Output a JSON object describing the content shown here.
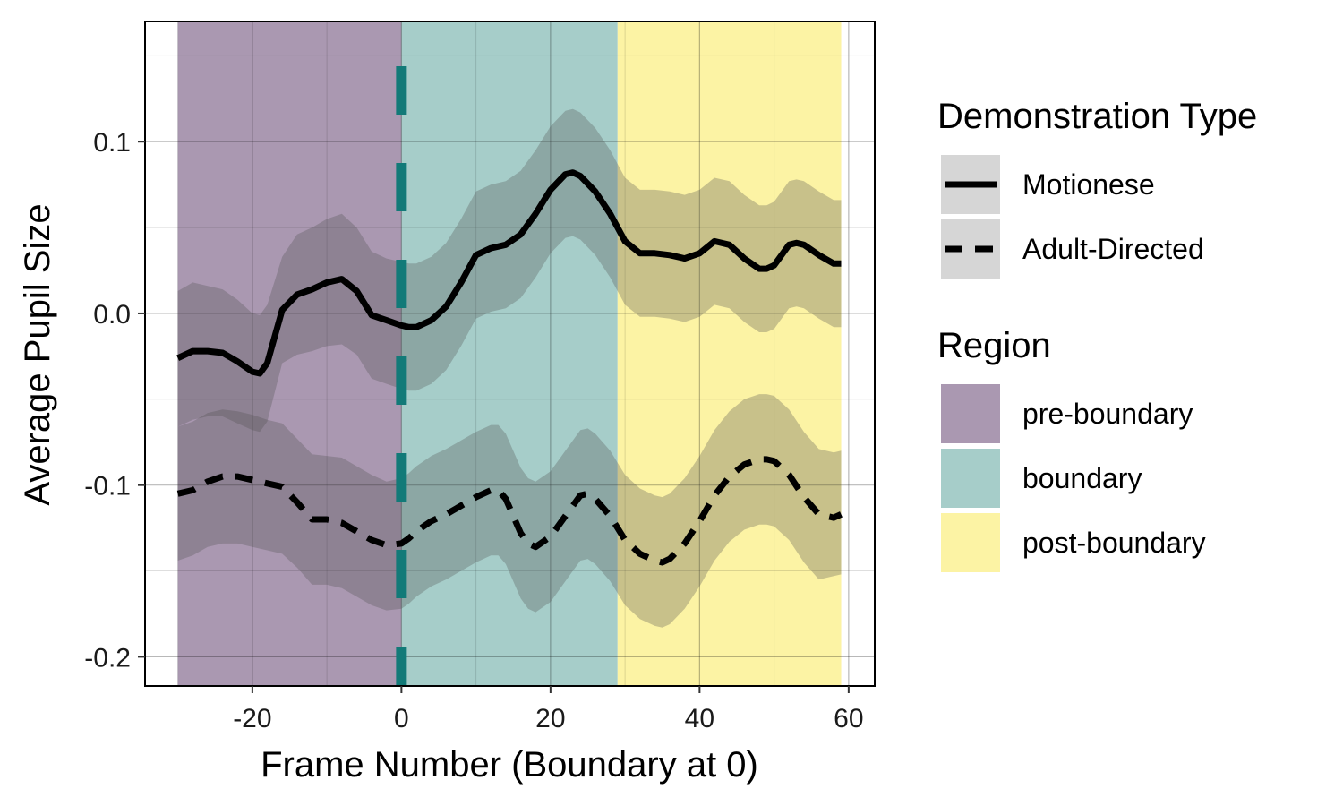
{
  "chart_data": {
    "type": "line",
    "xlabel": "Frame Number (Boundary at 0)",
    "ylabel": "Average Pupil Size",
    "xlim": [
      -34.4,
      63.5
    ],
    "ylim": [
      -0.217,
      0.17
    ],
    "x_ticks": [
      -20,
      0,
      20,
      40,
      60
    ],
    "x_tick_labels": [
      "-20",
      "0",
      "20",
      "40",
      "60"
    ],
    "y_ticks": [
      -0.2,
      -0.1,
      0.0,
      0.1
    ],
    "y_tick_labels": [
      "-0.2",
      "-0.1",
      "0.0",
      "0.1"
    ],
    "grid": true,
    "boundary_marker": {
      "x": 0,
      "style": "dashed",
      "color": "#127a78"
    },
    "regions": [
      {
        "name": "pre-boundary",
        "x_start": -30,
        "x_end": 0,
        "color": "#aa98b1"
      },
      {
        "name": "boundary",
        "x_start": 0,
        "x_end": 29,
        "color": "#a6cdc9"
      },
      {
        "name": "post-boundary",
        "x_start": 29,
        "x_end": 59,
        "color": "#fcf3a4"
      }
    ],
    "series": [
      {
        "name": "Motionese",
        "line_style": "solid",
        "color": "#000000",
        "x": [
          -30,
          -28,
          -26,
          -24,
          -22,
          -20,
          -19,
          -18,
          -16,
          -14,
          -12,
          -10,
          -8,
          -6,
          -4,
          -2,
          0,
          1,
          2,
          4,
          6,
          8,
          10,
          12,
          14,
          16,
          18,
          20,
          22,
          23,
          24,
          26,
          28,
          30,
          32,
          34,
          36,
          38,
          40,
          42,
          44,
          46,
          48,
          49,
          50,
          52,
          53,
          54,
          56,
          58,
          59
        ],
        "y": [
          -0.026,
          -0.022,
          -0.022,
          -0.023,
          -0.028,
          -0.034,
          -0.035,
          -0.029,
          0.002,
          0.011,
          0.014,
          0.018,
          0.02,
          0.013,
          -0.001,
          -0.004,
          -0.007,
          -0.008,
          -0.008,
          -0.004,
          0.004,
          0.018,
          0.034,
          0.038,
          0.04,
          0.046,
          0.058,
          0.072,
          0.081,
          0.082,
          0.08,
          0.071,
          0.058,
          0.042,
          0.035,
          0.035,
          0.034,
          0.032,
          0.035,
          0.042,
          0.04,
          0.032,
          0.026,
          0.026,
          0.028,
          0.04,
          0.041,
          0.04,
          0.034,
          0.029,
          0.029
        ],
        "band_upper": [
          0.013,
          0.018,
          0.016,
          0.014,
          0.008,
          0.0,
          -0.001,
          0.005,
          0.033,
          0.046,
          0.05,
          0.055,
          0.058,
          0.05,
          0.036,
          0.032,
          0.03,
          0.029,
          0.029,
          0.033,
          0.041,
          0.055,
          0.071,
          0.075,
          0.077,
          0.083,
          0.095,
          0.109,
          0.118,
          0.119,
          0.117,
          0.108,
          0.095,
          0.079,
          0.072,
          0.072,
          0.071,
          0.069,
          0.072,
          0.079,
          0.077,
          0.069,
          0.063,
          0.063,
          0.065,
          0.077,
          0.078,
          0.077,
          0.071,
          0.066,
          0.066
        ],
        "band_lower": [
          -0.066,
          -0.062,
          -0.06,
          -0.06,
          -0.064,
          -0.068,
          -0.069,
          -0.063,
          -0.029,
          -0.024,
          -0.022,
          -0.019,
          -0.018,
          -0.024,
          -0.038,
          -0.041,
          -0.044,
          -0.045,
          -0.045,
          -0.041,
          -0.033,
          -0.019,
          -0.003,
          0.001,
          0.003,
          0.009,
          0.021,
          0.035,
          0.044,
          0.045,
          0.043,
          0.034,
          0.021,
          0.005,
          -0.002,
          -0.002,
          -0.003,
          -0.005,
          -0.002,
          0.005,
          0.003,
          -0.005,
          -0.011,
          -0.011,
          -0.009,
          0.003,
          0.004,
          0.003,
          -0.003,
          -0.008,
          -0.008
        ]
      },
      {
        "name": "Adult-Directed",
        "line_style": "dashed",
        "color": "#000000",
        "x": [
          -30,
          -28,
          -26,
          -24,
          -22,
          -20,
          -18,
          -16,
          -14,
          -12,
          -10,
          -8,
          -6,
          -4,
          -2,
          0,
          1,
          2,
          4,
          6,
          8,
          10,
          12,
          13,
          14,
          16,
          17,
          18,
          20,
          22,
          24,
          25,
          26,
          28,
          30,
          32,
          34,
          35,
          36,
          38,
          40,
          42,
          44,
          46,
          48,
          49,
          50,
          52,
          54,
          56,
          58,
          59
        ],
        "y": [
          -0.105,
          -0.103,
          -0.098,
          -0.095,
          -0.095,
          -0.097,
          -0.099,
          -0.101,
          -0.11,
          -0.12,
          -0.12,
          -0.122,
          -0.127,
          -0.132,
          -0.135,
          -0.134,
          -0.131,
          -0.127,
          -0.121,
          -0.117,
          -0.112,
          -0.107,
          -0.103,
          -0.103,
          -0.108,
          -0.128,
          -0.134,
          -0.136,
          -0.13,
          -0.118,
          -0.106,
          -0.105,
          -0.108,
          -0.118,
          -0.132,
          -0.14,
          -0.144,
          -0.145,
          -0.143,
          -0.134,
          -0.121,
          -0.106,
          -0.095,
          -0.088,
          -0.085,
          -0.085,
          -0.086,
          -0.094,
          -0.107,
          -0.117,
          -0.119,
          -0.117
        ],
        "band_upper": [
          -0.066,
          -0.063,
          -0.058,
          -0.056,
          -0.057,
          -0.059,
          -0.062,
          -0.064,
          -0.073,
          -0.082,
          -0.083,
          -0.084,
          -0.089,
          -0.094,
          -0.098,
          -0.096,
          -0.093,
          -0.089,
          -0.083,
          -0.079,
          -0.074,
          -0.069,
          -0.065,
          -0.065,
          -0.07,
          -0.09,
          -0.096,
          -0.098,
          -0.092,
          -0.08,
          -0.068,
          -0.067,
          -0.07,
          -0.08,
          -0.094,
          -0.102,
          -0.106,
          -0.107,
          -0.105,
          -0.096,
          -0.083,
          -0.068,
          -0.057,
          -0.05,
          -0.047,
          -0.047,
          -0.048,
          -0.056,
          -0.069,
          -0.079,
          -0.081,
          -0.08
        ],
        "band_lower": [
          -0.144,
          -0.141,
          -0.136,
          -0.134,
          -0.134,
          -0.136,
          -0.138,
          -0.14,
          -0.148,
          -0.158,
          -0.158,
          -0.16,
          -0.165,
          -0.17,
          -0.173,
          -0.172,
          -0.169,
          -0.165,
          -0.159,
          -0.155,
          -0.15,
          -0.145,
          -0.141,
          -0.141,
          -0.146,
          -0.166,
          -0.172,
          -0.174,
          -0.168,
          -0.156,
          -0.144,
          -0.143,
          -0.146,
          -0.156,
          -0.17,
          -0.178,
          -0.182,
          -0.183,
          -0.181,
          -0.172,
          -0.159,
          -0.144,
          -0.133,
          -0.126,
          -0.123,
          -0.123,
          -0.124,
          -0.132,
          -0.145,
          -0.155,
          -0.153,
          -0.152
        ]
      }
    ],
    "band_color": "#505050",
    "legends": [
      {
        "title": "Demonstration Type",
        "entries": [
          {
            "label": "Motionese",
            "kind": "line",
            "style": "solid"
          },
          {
            "label": "Adult-Directed",
            "kind": "line",
            "style": "dashed"
          }
        ]
      },
      {
        "title": "Region",
        "entries": [
          {
            "label": "pre-boundary",
            "kind": "fill",
            "color": "#aa98b1"
          },
          {
            "label": "boundary",
            "kind": "fill",
            "color": "#a6cdc9"
          },
          {
            "label": "post-boundary",
            "kind": "fill",
            "color": "#fcf3a4"
          }
        ]
      }
    ],
    "legend_placement": "right"
  }
}
